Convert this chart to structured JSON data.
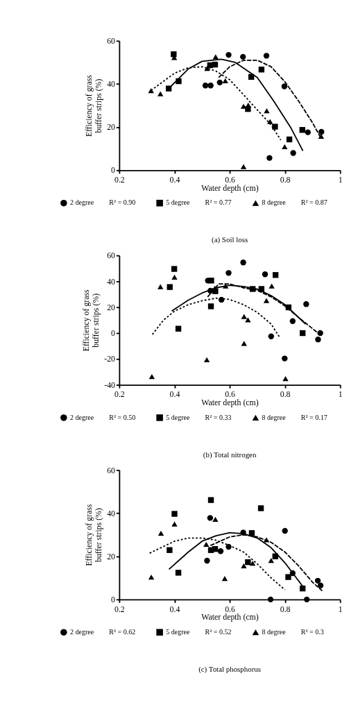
{
  "chart_data": [
    {
      "type": "scatter",
      "title": "(a) Soil loss",
      "xlabel": "Water depth (cm)",
      "ylabel": "Efficiency of grass buffer strips (%)",
      "xlim": [
        0.2,
        1
      ],
      "ylim": [
        0,
        60
      ],
      "xticks": [
        0.2,
        0.4,
        0.6,
        0.8,
        1
      ],
      "yticks": [
        0,
        20,
        40,
        60
      ],
      "legend": "bottom",
      "annotations": [
        "R² = 0.90",
        "R² = 0.77",
        "R² = 0.87"
      ],
      "series": [
        {
          "name": "2 degree",
          "color": "#000000",
          "marker": "circle",
          "x": [
            0.596,
            0.512,
            0.531,
            0.564,
            0.648,
            0.733,
            0.798,
            0.883,
            0.932,
            0.744,
            0.83
          ],
          "values": [
            53.5,
            39.3,
            39.3,
            40.7,
            52.6,
            53.1,
            38.9,
            17.6,
            17.8,
            5.7,
            8.0
          ]
        },
        {
          "name": "5 degree",
          "color": "#000000",
          "marker": "square",
          "x": [
            0.397,
            0.379,
            0.415,
            0.529,
            0.547,
            0.678,
            0.715,
            0.666,
            0.764,
            0.816,
            0.863
          ],
          "values": [
            53.8,
            37.9,
            41.3,
            48.7,
            49.0,
            43.3,
            46.7,
            28.4,
            20.2,
            14.3,
            18.7
          ]
        },
        {
          "name": "8 degree",
          "color": "#000000",
          "marker": "triangle",
          "x": [
            0.315,
            0.349,
            0.399,
            0.518,
            0.549,
            0.584,
            0.65,
            0.667,
            0.734,
            0.746,
            0.799,
            0.65,
            0.931
          ],
          "values": [
            36.9,
            35.5,
            52.3,
            47.2,
            52.6,
            41.5,
            29.7,
            30.2,
            27.6,
            22.6,
            10.9,
            1.7,
            15.8
          ]
        },
        {
          "type": "line",
          "color": "#000000",
          "line_style": "solid",
          "x": [
            0.38,
            0.45,
            0.5,
            0.57,
            0.62,
            0.7,
            0.76,
            0.82,
            0.865
          ],
          "values": [
            38,
            47,
            50.5,
            51.5,
            50,
            43,
            32,
            20,
            9
          ]
        },
        {
          "type": "line",
          "color": "#000000",
          "line_style": "dashed",
          "x": [
            0.56,
            0.6,
            0.65,
            0.7,
            0.75,
            0.8,
            0.85,
            0.9,
            0.93
          ],
          "values": [
            43,
            48,
            51,
            51,
            48,
            41,
            32,
            22,
            15
          ]
        },
        {
          "type": "line",
          "color": "#000000",
          "line_style": "dotted",
          "x": [
            0.315,
            0.4,
            0.45,
            0.5,
            0.55,
            0.6,
            0.65,
            0.7,
            0.75,
            0.785
          ],
          "values": [
            37,
            45,
            47.5,
            48,
            46,
            42,
            35,
            28,
            21,
            14
          ]
        }
      ]
    },
    {
      "type": "scatter",
      "title": "(b) Total nitrogen",
      "xlabel": "Water depth (cm)",
      "ylabel": "Efficiency of grass buffer strips (%)",
      "xlim": [
        0.2,
        1
      ],
      "ylim": [
        -40,
        60
      ],
      "xticks": [
        0.2,
        0.4,
        0.6,
        0.8,
        1
      ],
      "yticks": [
        -40,
        -20,
        0,
        20,
        40,
        60
      ],
      "legend": "bottom",
      "annotations": [
        "R² = 0.50",
        "R² = 0.33",
        "R² = 0.17"
      ],
      "series": [
        {
          "name": "2 degree",
          "color": "#000000",
          "marker": "circle",
          "x": [
            0.649,
            0.596,
            0.728,
            0.521,
            0.53,
            0.57,
            0.877,
            0.828,
            0.75,
            0.928,
            0.92,
            0.799
          ],
          "values": [
            54.6,
            46.5,
            45.5,
            40.6,
            32.7,
            25.8,
            22.4,
            9.3,
            -2.5,
            0,
            -4.9,
            -19.6
          ]
        },
        {
          "name": "5 degree",
          "color": "#000000",
          "marker": "square",
          "x": [
            0.399,
            0.383,
            0.414,
            0.533,
            0.532,
            0.548,
            0.683,
            0.715,
            0.766,
            0.813,
            0.864
          ],
          "values": [
            49.6,
            35.6,
            3.4,
            40.6,
            20.7,
            32.4,
            34.1,
            34.1,
            44.9,
            19.9,
            0
          ]
        },
        {
          "name": "8 degree",
          "color": "#000000",
          "marker": "triangle",
          "x": [
            0.318,
            0.349,
            0.4,
            0.517,
            0.546,
            0.585,
            0.652,
            0.666,
            0.652,
            0.733,
            0.752,
            0.802
          ],
          "values": [
            -33.6,
            35.9,
            43.2,
            -20.6,
            34.7,
            36.4,
            12.8,
            10.3,
            -7.9,
            25.1,
            36.4,
            -35.2
          ]
        },
        {
          "type": "line",
          "color": "#000000",
          "line_style": "solid",
          "x": [
            0.39,
            0.45,
            0.5,
            0.55,
            0.6,
            0.65,
            0.7,
            0.75,
            0.8,
            0.875
          ],
          "values": [
            17,
            25.5,
            31,
            35,
            37,
            36,
            34,
            29,
            22,
            7
          ]
        },
        {
          "type": "line",
          "color": "#000000",
          "line_style": "dashed",
          "x": [
            0.52,
            0.56,
            0.6,
            0.65,
            0.7,
            0.75,
            0.8,
            0.85,
            0.92
          ],
          "values": [
            28,
            38,
            38,
            35,
            33,
            28,
            21,
            12,
            0
          ]
        },
        {
          "type": "line",
          "color": "#000000",
          "line_style": "dotted",
          "x": [
            0.32,
            0.36,
            0.4,
            0.45,
            0.5,
            0.55,
            0.6,
            0.65,
            0.7,
            0.75,
            0.78
          ],
          "values": [
            -1,
            10,
            17,
            22,
            25,
            27,
            26,
            22,
            16,
            7,
            -3
          ]
        }
      ]
    },
    {
      "type": "scatter",
      "title": "(c) Total phosphorus",
      "xlabel": "Water depth (cm)",
      "ylabel": "Efficiency of grass buffer strips (%)",
      "xlim": [
        0.2,
        1
      ],
      "ylim": [
        0,
        60
      ],
      "xticks": [
        0.2,
        0.4,
        0.6,
        0.8,
        1
      ],
      "yticks": [
        0,
        20,
        40,
        60
      ],
      "legend": "bottom",
      "annotations": [
        "R² = 0.62",
        "R² = 0.52",
        "R² = 0.3"
      ],
      "series": [
        {
          "name": "2 degree",
          "color": "#000000",
          "marker": "circle",
          "x": [
            0.529,
            0.518,
            0.567,
            0.596,
            0.649,
            0.8,
            0.748,
            0.879,
            0.919,
            0.929,
            0.828
          ],
          "values": [
            37.8,
            18.0,
            22.4,
            24.4,
            31.0,
            31.8,
            0,
            0,
            8.7,
            6.5,
            12.2
          ]
        },
        {
          "name": "5 degree",
          "color": "#000000",
          "marker": "square",
          "x": [
            0.532,
            0.4,
            0.382,
            0.414,
            0.532,
            0.547,
            0.666,
            0.68,
            0.713,
            0.765,
            0.812,
            0.864
          ],
          "values": [
            46.1,
            39.7,
            22.9,
            12.4,
            22.9,
            23.4,
            17.3,
            30.8,
            42.3,
            20.0,
            10.4,
            5.1
          ]
        },
        {
          "name": "8 degree",
          "color": "#000000",
          "marker": "triangle",
          "x": [
            0.316,
            0.351,
            0.4,
            0.515,
            0.548,
            0.582,
            0.651,
            0.683,
            0.733,
            0.75
          ],
          "values": [
            10.4,
            30.7,
            35.0,
            25.6,
            37.2,
            9.7,
            15.6,
            16.8,
            27.7,
            18.1
          ]
        },
        {
          "type": "line",
          "color": "#000000",
          "line_style": "solid",
          "x": [
            0.38,
            0.45,
            0.5,
            0.55,
            0.6,
            0.65,
            0.7,
            0.75,
            0.8,
            0.865
          ],
          "values": [
            14,
            22,
            27,
            29.5,
            31,
            30.5,
            28.5,
            24,
            17,
            6
          ]
        },
        {
          "type": "line",
          "color": "#000000",
          "line_style": "dashed",
          "x": [
            0.53,
            0.6,
            0.65,
            0.7,
            0.75,
            0.8,
            0.85,
            0.9,
            0.935
          ],
          "values": [
            25,
            29,
            30,
            29,
            26.5,
            22,
            15.5,
            8,
            4
          ]
        },
        {
          "type": "line",
          "color": "#000000",
          "line_style": "dotted",
          "x": [
            0.31,
            0.4,
            0.45,
            0.5,
            0.55,
            0.6,
            0.65,
            0.7,
            0.75,
            0.8
          ],
          "values": [
            21.5,
            27,
            28.5,
            28.5,
            27.5,
            25,
            22,
            16.5,
            10,
            4.5
          ]
        }
      ]
    }
  ]
}
